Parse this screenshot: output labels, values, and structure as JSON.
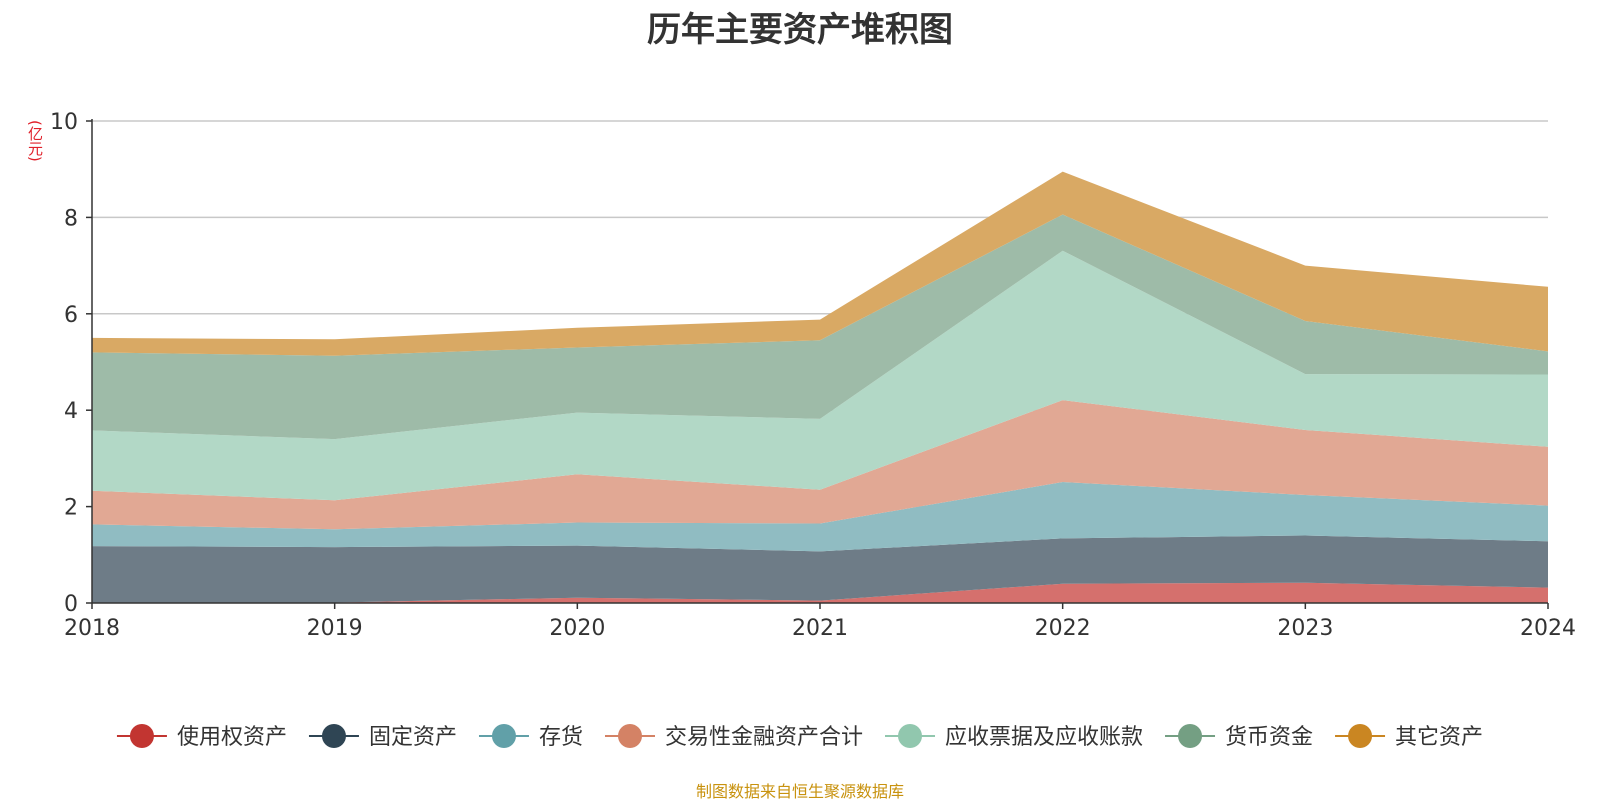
{
  "chart_data": {
    "type": "area",
    "stacked": true,
    "title": "历年主要资产堆积图",
    "ylabel": "(亿元)",
    "xlabel": "",
    "categories": [
      "2018",
      "2019",
      "2020",
      "2021",
      "2022",
      "2023",
      "2024"
    ],
    "ylim": [
      0,
      10
    ],
    "yticks": [
      0,
      2,
      4,
      6,
      8,
      10
    ],
    "grid": true,
    "legend_position": "bottom",
    "series": [
      {
        "name": "使用权资产",
        "color": "#c23531",
        "fill": "#d5706d",
        "values": [
          0.0,
          0.01,
          0.11,
          0.05,
          0.4,
          0.42,
          0.32
        ]
      },
      {
        "name": "固定资产",
        "color": "#2f4554",
        "fill": "#6e7c87",
        "values": [
          1.18,
          1.15,
          1.08,
          1.02,
          0.94,
          0.98,
          0.96
        ]
      },
      {
        "name": "存货",
        "color": "#61a0a8",
        "fill": "#90bcc2",
        "values": [
          0.45,
          0.37,
          0.48,
          0.58,
          1.17,
          0.84,
          0.74
        ]
      },
      {
        "name": "交易性金融资产合计",
        "color": "#d48265",
        "fill": "#e1a894",
        "values": [
          0.7,
          0.6,
          1.0,
          0.7,
          1.7,
          1.35,
          1.22
        ]
      },
      {
        "name": "应收票据及应收账款",
        "color": "#91c7ae",
        "fill": "#b2d8c6",
        "values": [
          1.25,
          1.27,
          1.28,
          1.47,
          3.1,
          1.16,
          1.5
        ]
      },
      {
        "name": "货币资金",
        "color": "#749f83",
        "fill": "#9ebba8",
        "values": [
          1.62,
          1.73,
          1.35,
          1.63,
          0.75,
          1.1,
          0.48
        ]
      },
      {
        "name": "其它资产",
        "color": "#ca8622",
        "fill": "#d9a964",
        "values": [
          0.3,
          0.34,
          0.41,
          0.43,
          0.89,
          1.15,
          1.34
        ]
      }
    ]
  },
  "source_note": "制图数据来自恒生聚源数据库"
}
